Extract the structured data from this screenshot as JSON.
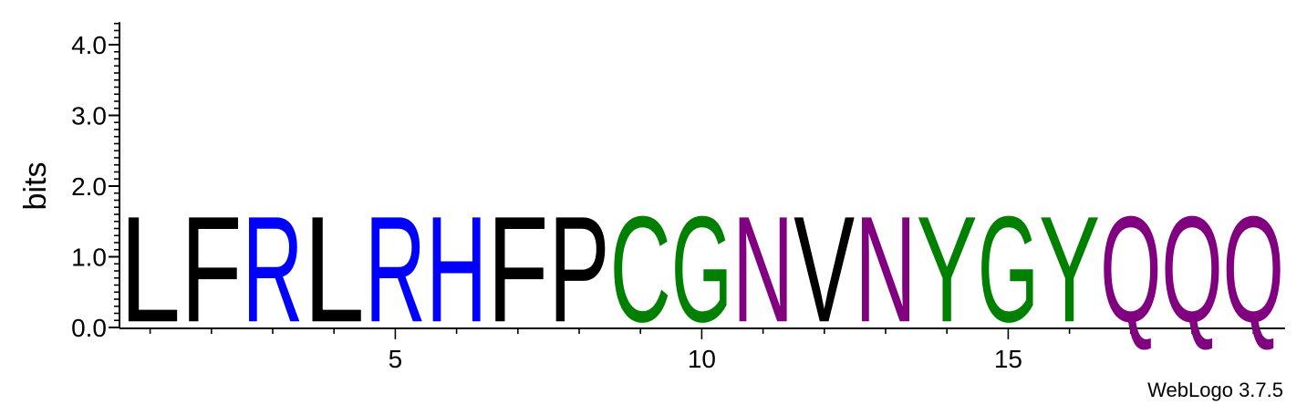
{
  "chart_data": {
    "type": "sequence-logo",
    "ylabel": "bits",
    "ylim": [
      0,
      4.32
    ],
    "yticks": [
      "0.0",
      "1.0",
      "2.0",
      "3.0",
      "4.0"
    ],
    "xticks": [
      "5",
      "10",
      "15"
    ],
    "xtick_positions": [
      5,
      10,
      15
    ],
    "positions": [
      1,
      2,
      3,
      4,
      5,
      6,
      7,
      8,
      9,
      10,
      11,
      12,
      13,
      14,
      15,
      16,
      17,
      18,
      19
    ],
    "residues": [
      "L",
      "F",
      "R",
      "L",
      "R",
      "H",
      "F",
      "P",
      "C",
      "G",
      "N",
      "V",
      "N",
      "Y",
      "G",
      "Y",
      "Q",
      "Q",
      "Q"
    ],
    "heights": [
      1.77,
      1.77,
      1.77,
      1.77,
      1.77,
      1.77,
      1.77,
      1.77,
      1.77,
      1.77,
      1.77,
      1.77,
      1.77,
      1.77,
      1.77,
      1.77,
      1.77,
      1.77,
      1.77
    ],
    "colors": {
      "L": "#000000",
      "F": "#000000",
      "P": "#000000",
      "V": "#000000",
      "R": "#0000ff",
      "H": "#0000ff",
      "C": "#008000",
      "G": "#008000",
      "Y": "#008000",
      "N": "#800080",
      "Q": "#800080"
    }
  },
  "credit": "WebLogo 3.7.5"
}
